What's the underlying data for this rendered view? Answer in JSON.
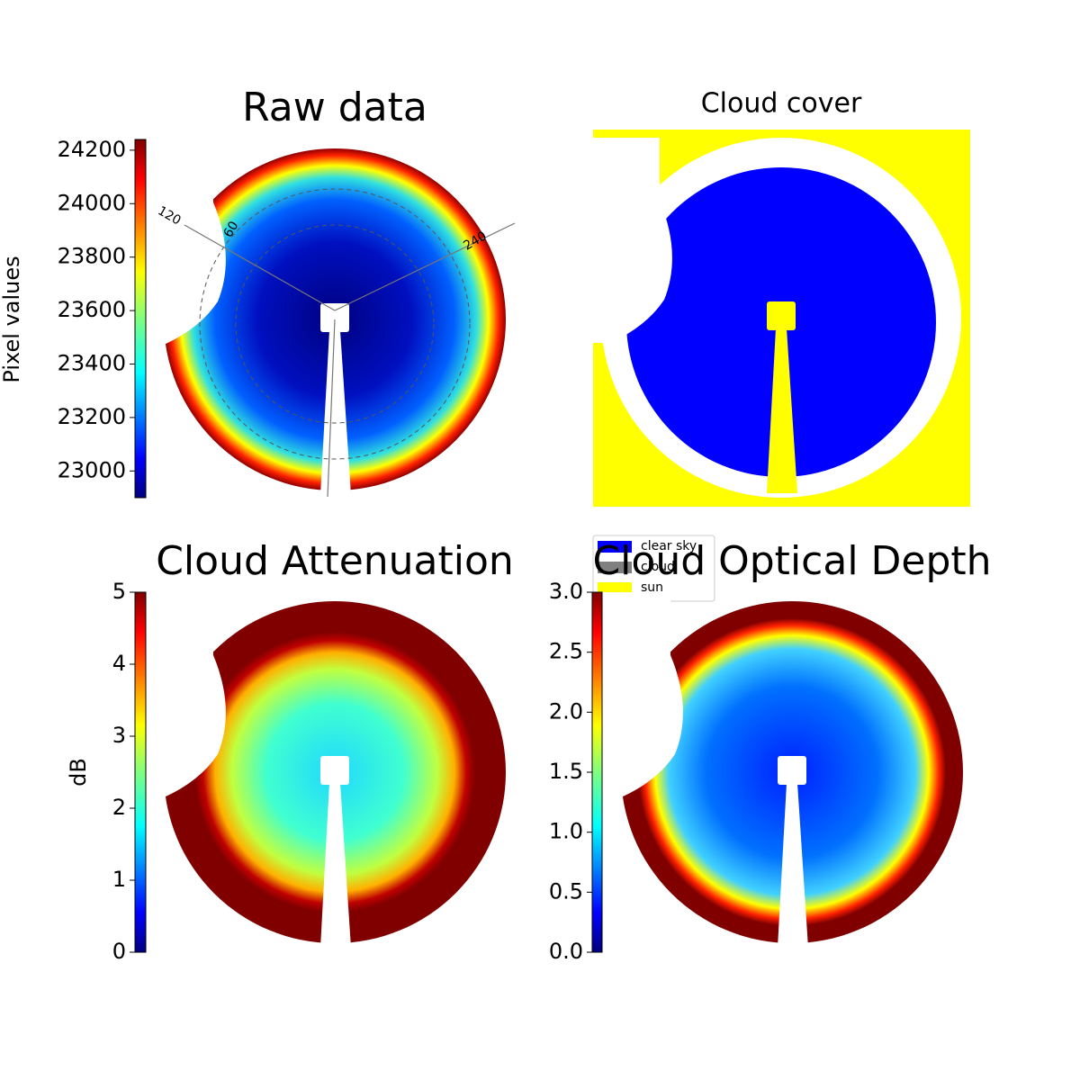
{
  "chart_data": [
    {
      "type": "image",
      "title": "Raw data",
      "ylabel": "Pixel values",
      "ylim": [
        22900,
        24240
      ],
      "yticks": [
        23000,
        23200,
        23400,
        23600,
        23800,
        24000,
        24200
      ],
      "annotations": [
        "120",
        "60",
        "240"
      ]
    },
    {
      "type": "image",
      "title": "Cloud cover",
      "series": [
        {
          "name": "clear sky",
          "color": "#0000ff"
        },
        {
          "name": "cloud",
          "color": "#808080"
        },
        {
          "name": "sun",
          "color": "#ffff00"
        }
      ]
    },
    {
      "type": "image",
      "title": "Cloud Attenuation",
      "ylabel": "dB",
      "ylim": [
        0,
        5
      ],
      "yticks": [
        0,
        1,
        2,
        3,
        4,
        5
      ]
    },
    {
      "type": "image",
      "title": "Cloud Optical Depth",
      "ylim": [
        0,
        3
      ],
      "yticks": [
        {
          "value": 0,
          "label": "0.0"
        },
        {
          "value": 0.5,
          "label": "0.5"
        },
        {
          "value": 1,
          "label": "1.0"
        },
        {
          "value": 1.5,
          "label": "1.5"
        },
        {
          "value": 2,
          "label": "2.0"
        },
        {
          "value": 2.5,
          "label": "2.5"
        },
        {
          "value": 3,
          "label": "3.0"
        }
      ]
    }
  ]
}
